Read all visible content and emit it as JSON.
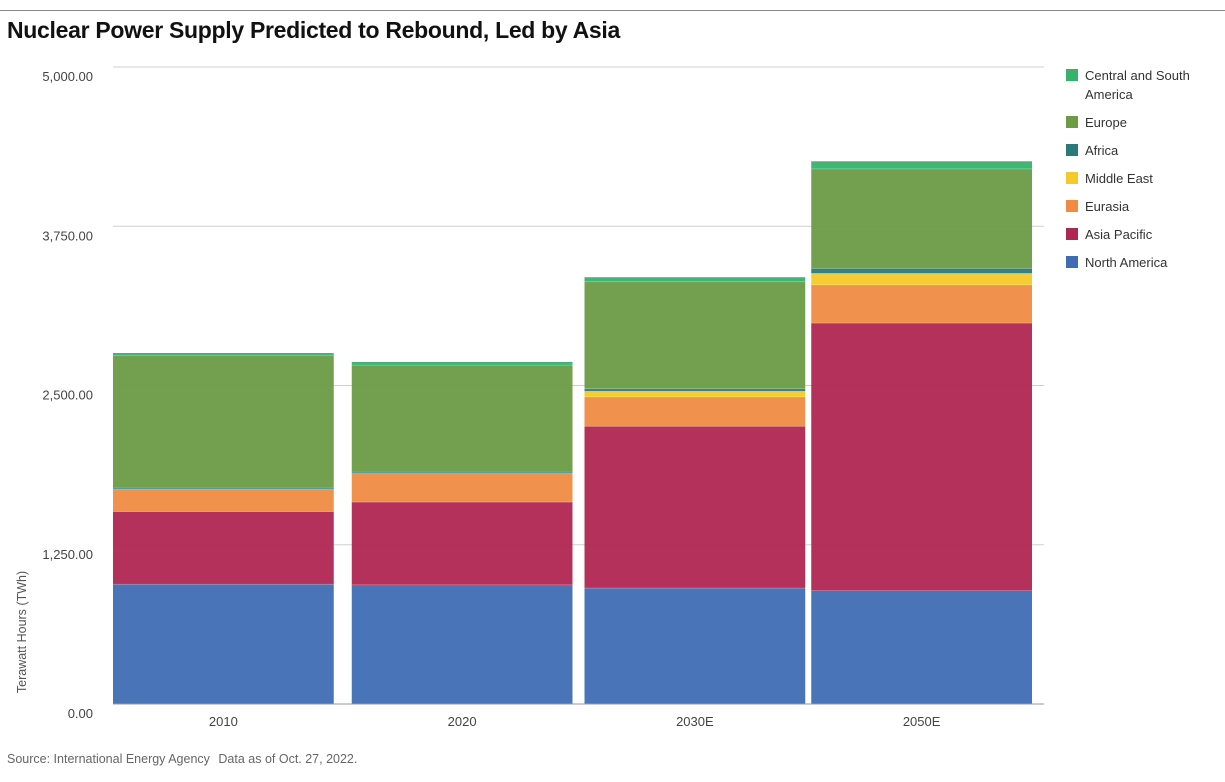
{
  "title": "Nuclear Power Supply Predicted to Rebound, Led by Asia",
  "source": "Source: International Energy Agency",
  "data_note": "Data as of Oct. 27, 2022.",
  "chart_data": {
    "type": "bar",
    "stacked": true,
    "title": "Nuclear Power Supply Predicted to Rebound, Led by Asia",
    "xlabel": "",
    "ylabel": "Terawatt Hours (TWh)",
    "ylim": [
      0,
      5000
    ],
    "yticks": [
      0,
      1250,
      2500,
      3750,
      5000
    ],
    "ytick_labels": [
      "0.00",
      "1,250.00",
      "2,500.00",
      "3,750.00",
      "5,000.00"
    ],
    "grid": true,
    "legend_position": "right",
    "categories": [
      "2010",
      "2020",
      "2030E",
      "2050E"
    ],
    "series": [
      {
        "name": "North America",
        "color": "#3f6db3",
        "values": [
          940,
          935,
          910,
          890
        ]
      },
      {
        "name": "Asia Pacific",
        "color": "#b02652",
        "values": [
          570,
          650,
          1270,
          2100
        ]
      },
      {
        "name": "Eurasia",
        "color": "#f08b44",
        "values": [
          175,
          225,
          230,
          300
        ]
      },
      {
        "name": "Middle East",
        "color": "#f5c929",
        "values": [
          0,
          0,
          45,
          90
        ]
      },
      {
        "name": "Africa",
        "color": "#2b7a78",
        "values": [
          10,
          10,
          20,
          40
        ]
      },
      {
        "name": "Europe",
        "color": "#6b9b45",
        "values": [
          1040,
          840,
          840,
          780
        ]
      },
      {
        "name": "Central and South America",
        "color": "#35b36a",
        "values": [
          20,
          25,
          35,
          60
        ]
      }
    ]
  }
}
